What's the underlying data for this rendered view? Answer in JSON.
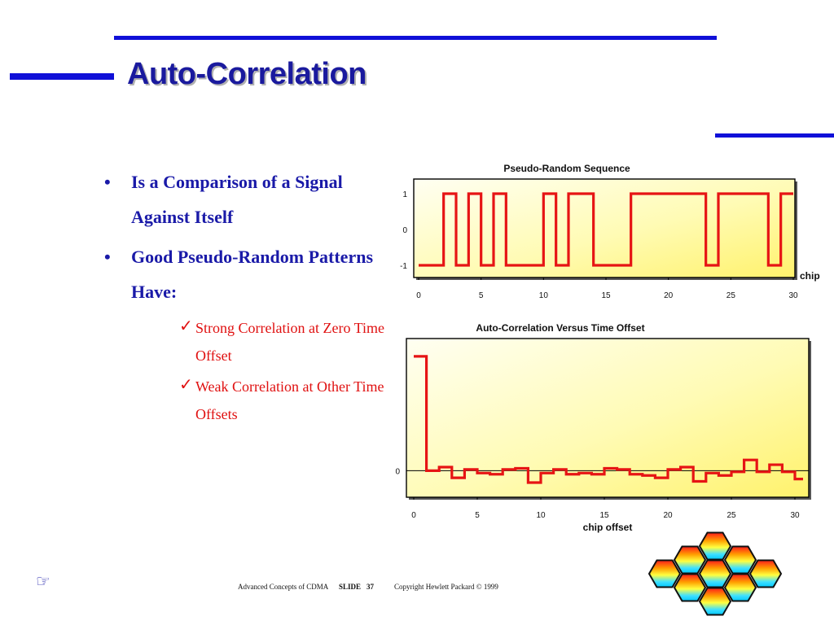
{
  "slide": {
    "title": "Auto-Correlation",
    "bullets": [
      "Is a Comparison of a Signal Against Itself",
      "Good Pseudo-Random Patterns Have:"
    ],
    "sub_bullets": [
      "Strong Correlation at Zero Time Offset",
      "Weak Correlation at Other Time Offsets"
    ],
    "footer": {
      "left": "Advanced Concepts of CDMA",
      "slide_label": "SLIDE",
      "slide_number": "37",
      "copyright": "Copyright Hewlett Packard © 1999"
    }
  },
  "colors": {
    "accent_blue": "#1010d8",
    "title_blue": "#1a1a9e",
    "trace_red": "#e61414"
  },
  "chart_data": [
    {
      "type": "line",
      "step": true,
      "title": "Pseudo-Random Sequence",
      "xlabel": "chip",
      "ylabel": "",
      "xlim": [
        0,
        30
      ],
      "ylim": [
        -1,
        1
      ],
      "xticks": [
        0,
        5,
        10,
        15,
        20,
        25,
        30
      ],
      "yticks": [
        1,
        0,
        -1
      ],
      "grid": false,
      "series": [
        {
          "x": [
            0,
            1,
            2,
            3,
            4,
            5,
            6,
            7,
            8,
            9,
            10,
            11,
            12,
            13,
            14,
            15,
            16,
            17,
            18,
            19,
            20,
            21,
            22,
            23,
            24,
            25,
            26,
            27,
            28,
            29,
            30
          ],
          "values": [
            -1,
            -1,
            1,
            -1,
            1,
            -1,
            1,
            -1,
            -1,
            -1,
            1,
            -1,
            1,
            1,
            -1,
            -1,
            -1,
            1,
            1,
            1,
            1,
            1,
            1,
            -1,
            1,
            1,
            1,
            1,
            -1,
            1,
            1
          ]
        }
      ]
    },
    {
      "type": "line",
      "step": true,
      "title": "Auto-Correlation Versus Time Offset",
      "xlabel": "chip offset",
      "ylabel": "",
      "xlim": [
        0,
        30
      ],
      "ylim": [
        -1,
        10
      ],
      "xticks": [
        0,
        5,
        10,
        15,
        20,
        25,
        30
      ],
      "yticks": [
        0
      ],
      "grid": false,
      "series": [
        {
          "x": [
            0,
            1,
            2,
            3,
            4,
            5,
            6,
            7,
            8,
            9,
            10,
            11,
            12,
            13,
            14,
            15,
            16,
            17,
            18,
            19,
            20,
            21,
            22,
            23,
            24,
            25,
            26,
            27,
            28,
            29,
            30
          ],
          "values": [
            9.6,
            0,
            0.3,
            -0.6,
            0.1,
            -0.2,
            -0.3,
            0.1,
            0.2,
            -1.0,
            -0.2,
            0.1,
            -0.3,
            -0.2,
            -0.3,
            0.2,
            0.1,
            -0.3,
            -0.4,
            -0.6,
            0.1,
            0.3,
            -0.9,
            -0.2,
            -0.4,
            -0.1,
            0.9,
            -0.1,
            0.5,
            -0.1,
            -0.7
          ]
        }
      ]
    }
  ]
}
